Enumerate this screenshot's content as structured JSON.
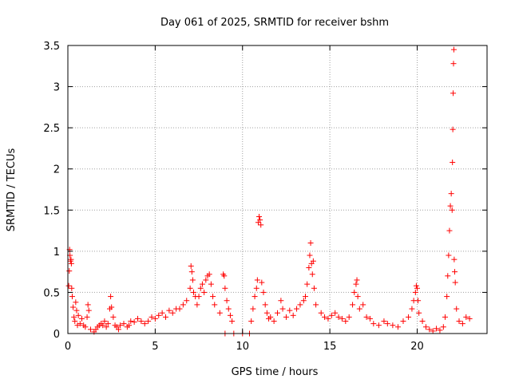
{
  "chart_data": {
    "type": "scatter",
    "title": "Day 061 of 2025, SRMTID for receiver bshm",
    "xlabel": "GPS time / hours",
    "ylabel": "SRMTID / TECUs",
    "xlim": [
      0,
      24
    ],
    "ylim": [
      0,
      3.5
    ],
    "xticks": [
      0,
      5,
      10,
      15,
      20
    ],
    "xtick_labels": [
      "0",
      "5",
      "10",
      "15",
      "20"
    ],
    "yticks": [
      0,
      0.5,
      1,
      1.5,
      2,
      2.5,
      3,
      3.5
    ],
    "ytick_labels": [
      "0",
      "0.5",
      "1",
      "1.5",
      "2",
      "2.5",
      "3",
      "3.5"
    ],
    "grid": true,
    "marker": "+",
    "color": "#ff0000",
    "series": [
      {
        "name": "SRMTID",
        "points": [
          [
            0.05,
            0.58
          ],
          [
            0.1,
            1.02
          ],
          [
            0.12,
            0.95
          ],
          [
            0.15,
            0.88
          ],
          [
            0.18,
            0.9
          ],
          [
            0.2,
            0.85
          ],
          [
            0.08,
            0.76
          ],
          [
            0.22,
            0.55
          ],
          [
            0.25,
            0.45
          ],
          [
            0.3,
            0.32
          ],
          [
            0.35,
            0.2
          ],
          [
            0.4,
            0.15
          ],
          [
            0.45,
            0.38
          ],
          [
            0.5,
            0.28
          ],
          [
            0.55,
            0.1
          ],
          [
            0.6,
            0.22
          ],
          [
            0.7,
            0.12
          ],
          [
            0.8,
            0.18
          ],
          [
            0.9,
            0.1
          ],
          [
            1.0,
            0.08
          ],
          [
            1.1,
            0.2
          ],
          [
            1.15,
            0.35
          ],
          [
            1.2,
            0.28
          ],
          [
            1.3,
            0.05
          ],
          [
            1.5,
            0.02
          ],
          [
            1.6,
            0.05
          ],
          [
            1.7,
            0.08
          ],
          [
            1.8,
            0.1
          ],
          [
            1.9,
            0.12
          ],
          [
            2.0,
            0.1
          ],
          [
            2.1,
            0.15
          ],
          [
            2.2,
            0.08
          ],
          [
            2.3,
            0.12
          ],
          [
            2.4,
            0.3
          ],
          [
            2.45,
            0.45
          ],
          [
            2.5,
            0.32
          ],
          [
            2.6,
            0.2
          ],
          [
            2.7,
            0.1
          ],
          [
            2.8,
            0.08
          ],
          [
            2.9,
            0.05
          ],
          [
            3.0,
            0.1
          ],
          [
            3.2,
            0.12
          ],
          [
            3.4,
            0.08
          ],
          [
            3.5,
            0.1
          ],
          [
            3.6,
            0.15
          ],
          [
            3.8,
            0.14
          ],
          [
            4.0,
            0.18
          ],
          [
            4.2,
            0.15
          ],
          [
            4.4,
            0.12
          ],
          [
            4.6,
            0.15
          ],
          [
            4.8,
            0.2
          ],
          [
            5.0,
            0.18
          ],
          [
            5.2,
            0.22
          ],
          [
            5.4,
            0.25
          ],
          [
            5.6,
            0.2
          ],
          [
            5.8,
            0.28
          ],
          [
            6.0,
            0.25
          ],
          [
            6.2,
            0.3
          ],
          [
            6.4,
            0.3
          ],
          [
            6.6,
            0.35
          ],
          [
            6.8,
            0.4
          ],
          [
            7.0,
            0.55
          ],
          [
            7.05,
            0.82
          ],
          [
            7.1,
            0.75
          ],
          [
            7.15,
            0.65
          ],
          [
            7.2,
            0.5
          ],
          [
            7.3,
            0.45
          ],
          [
            7.4,
            0.35
          ],
          [
            7.5,
            0.45
          ],
          [
            7.6,
            0.55
          ],
          [
            7.7,
            0.6
          ],
          [
            7.8,
            0.5
          ],
          [
            7.9,
            0.65
          ],
          [
            8.0,
            0.7
          ],
          [
            8.1,
            0.72
          ],
          [
            8.2,
            0.6
          ],
          [
            8.3,
            0.45
          ],
          [
            8.4,
            0.35
          ],
          [
            8.7,
            0.25
          ],
          [
            8.9,
            0.72
          ],
          [
            8.95,
            0.7
          ],
          [
            9.0,
            0.55
          ],
          [
            9.1,
            0.4
          ],
          [
            9.2,
            0.3
          ],
          [
            9.3,
            0.22
          ],
          [
            9.4,
            0.15
          ],
          [
            9.0,
            0.0
          ],
          [
            9.5,
            0.0
          ],
          [
            10.0,
            0.0
          ],
          [
            10.4,
            0.0
          ],
          [
            10.5,
            0.15
          ],
          [
            10.6,
            0.3
          ],
          [
            10.7,
            0.45
          ],
          [
            10.8,
            0.55
          ],
          [
            10.85,
            0.65
          ],
          [
            10.9,
            1.35
          ],
          [
            10.95,
            1.42
          ],
          [
            11.0,
            1.38
          ],
          [
            11.05,
            1.32
          ],
          [
            11.1,
            0.62
          ],
          [
            11.2,
            0.5
          ],
          [
            11.3,
            0.35
          ],
          [
            11.4,
            0.25
          ],
          [
            11.5,
            0.18
          ],
          [
            11.6,
            0.2
          ],
          [
            11.8,
            0.15
          ],
          [
            12.0,
            0.25
          ],
          [
            12.2,
            0.4
          ],
          [
            12.3,
            0.3
          ],
          [
            12.5,
            0.2
          ],
          [
            12.7,
            0.28
          ],
          [
            12.9,
            0.22
          ],
          [
            13.1,
            0.3
          ],
          [
            13.3,
            0.35
          ],
          [
            13.5,
            0.4
          ],
          [
            13.6,
            0.45
          ],
          [
            13.7,
            0.6
          ],
          [
            13.8,
            0.8
          ],
          [
            13.85,
            0.95
          ],
          [
            13.9,
            1.1
          ],
          [
            13.95,
            0.85
          ],
          [
            14.0,
            0.72
          ],
          [
            14.05,
            0.88
          ],
          [
            14.1,
            0.55
          ],
          [
            14.2,
            0.35
          ],
          [
            14.5,
            0.25
          ],
          [
            14.7,
            0.2
          ],
          [
            14.9,
            0.18
          ],
          [
            15.1,
            0.22
          ],
          [
            15.3,
            0.25
          ],
          [
            15.5,
            0.2
          ],
          [
            15.7,
            0.18
          ],
          [
            15.9,
            0.15
          ],
          [
            16.1,
            0.2
          ],
          [
            16.3,
            0.35
          ],
          [
            16.4,
            0.5
          ],
          [
            16.5,
            0.6
          ],
          [
            16.55,
            0.65
          ],
          [
            16.6,
            0.45
          ],
          [
            16.7,
            0.3
          ],
          [
            16.9,
            0.35
          ],
          [
            17.1,
            0.2
          ],
          [
            17.3,
            0.18
          ],
          [
            17.5,
            0.12
          ],
          [
            17.8,
            0.1
          ],
          [
            18.1,
            0.15
          ],
          [
            18.3,
            0.12
          ],
          [
            18.6,
            0.1
          ],
          [
            18.9,
            0.08
          ],
          [
            19.2,
            0.15
          ],
          [
            19.5,
            0.2
          ],
          [
            19.7,
            0.3
          ],
          [
            19.8,
            0.4
          ],
          [
            19.9,
            0.5
          ],
          [
            19.95,
            0.58
          ],
          [
            20.0,
            0.55
          ],
          [
            20.05,
            0.4
          ],
          [
            20.1,
            0.25
          ],
          [
            20.3,
            0.15
          ],
          [
            20.5,
            0.08
          ],
          [
            20.7,
            0.05
          ],
          [
            20.9,
            0.03
          ],
          [
            21.1,
            0.06
          ],
          [
            21.3,
            0.04
          ],
          [
            21.5,
            0.08
          ],
          [
            21.6,
            0.2
          ],
          [
            21.7,
            0.45
          ],
          [
            21.75,
            0.7
          ],
          [
            21.8,
            0.95
          ],
          [
            21.85,
            1.25
          ],
          [
            21.9,
            1.55
          ],
          [
            21.95,
            1.7
          ],
          [
            22.0,
            1.5
          ],
          [
            22.02,
            2.08
          ],
          [
            22.04,
            2.48
          ],
          [
            22.06,
            2.92
          ],
          [
            22.08,
            3.28
          ],
          [
            22.1,
            3.45
          ],
          [
            22.12,
            0.9
          ],
          [
            22.15,
            0.75
          ],
          [
            22.18,
            0.62
          ],
          [
            22.25,
            0.3
          ],
          [
            22.4,
            0.15
          ],
          [
            22.6,
            0.12
          ],
          [
            22.8,
            0.2
          ],
          [
            23.0,
            0.18
          ]
        ]
      }
    ]
  }
}
